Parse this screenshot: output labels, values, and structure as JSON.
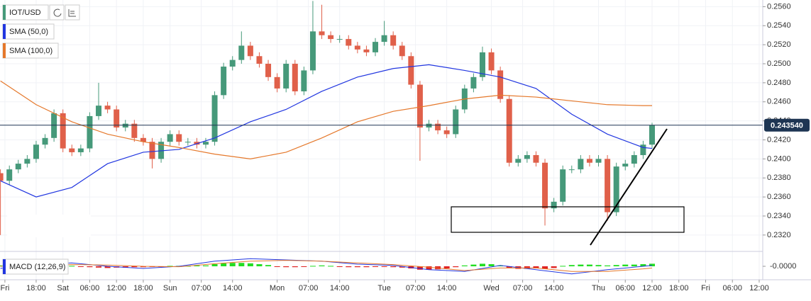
{
  "chart_data": [
    {
      "type": "candlestick",
      "name": "IOT/USD",
      "up_color": "#46997a",
      "down_color": "#e0604a",
      "x": [
        10,
        12,
        14,
        16,
        18,
        20,
        22,
        24,
        26,
        28,
        30,
        32,
        34,
        36,
        38,
        40,
        42,
        44,
        46,
        48,
        50,
        52,
        54,
        56,
        58,
        60,
        62,
        64,
        66,
        68,
        70,
        72,
        74,
        76,
        78,
        80,
        82,
        84,
        86,
        88,
        90,
        92,
        94,
        96,
        98,
        100,
        102,
        104,
        106,
        108,
        110,
        112,
        114,
        116,
        118,
        120,
        122,
        124,
        126,
        128,
        130,
        132,
        134,
        136,
        138,
        140,
        142,
        144,
        146,
        148,
        150,
        152,
        154,
        156
      ],
      "open": [
        0.2385,
        0.2377,
        0.2389,
        0.2395,
        0.24,
        0.2415,
        0.2422,
        0.2448,
        0.2411,
        0.2407,
        0.2411,
        0.2445,
        0.2456,
        0.2452,
        0.2433,
        0.2437,
        0.2422,
        0.2418,
        0.24,
        0.2418,
        0.2426,
        0.2418,
        0.2418,
        0.2415,
        0.2418,
        0.2467,
        0.2497,
        0.2504,
        0.2519,
        0.2508,
        0.25,
        0.2486,
        0.2474,
        0.25,
        0.2471,
        0.2493,
        0.2534,
        0.253,
        0.2526,
        0.2526,
        0.2519,
        0.2515,
        0.2512,
        0.2523,
        0.253,
        0.2519,
        0.2508,
        0.2478,
        0.2433,
        0.2437,
        0.243,
        0.2426,
        0.2452,
        0.2474,
        0.2486,
        0.2512,
        0.2493,
        0.2463,
        0.2396,
        0.24,
        0.2404,
        0.2396,
        0.2348,
        0.2355,
        0.2389,
        0.2389,
        0.24,
        0.2396,
        0.24,
        0.2344,
        0.2392,
        0.2395,
        0.2404,
        0.2415
      ],
      "high": [
        0.2389,
        0.2393,
        0.2399,
        0.2404,
        0.2419,
        0.2426,
        0.2452,
        0.2452,
        0.2415,
        0.2415,
        0.2449,
        0.248,
        0.246,
        0.2456,
        0.2441,
        0.2441,
        0.2426,
        0.2422,
        0.2422,
        0.243,
        0.243,
        0.2422,
        0.2422,
        0.2422,
        0.2471,
        0.2501,
        0.2508,
        0.2534,
        0.2523,
        0.2512,
        0.2504,
        0.249,
        0.2504,
        0.2504,
        0.2497,
        0.2566,
        0.2562,
        0.2534,
        0.253,
        0.253,
        0.2523,
        0.2519,
        0.2527,
        0.2545,
        0.2534,
        0.2523,
        0.2512,
        0.2482,
        0.2441,
        0.2441,
        0.2434,
        0.2456,
        0.2478,
        0.249,
        0.2518,
        0.2516,
        0.2497,
        0.2467,
        0.2404,
        0.2408,
        0.2408,
        0.24,
        0.2359,
        0.2393,
        0.2393,
        0.2404,
        0.2404,
        0.2404,
        0.2404,
        0.2396,
        0.2399,
        0.2408,
        0.2419,
        0.2438
      ],
      "low": [
        0.232,
        0.2373,
        0.2385,
        0.2391,
        0.2396,
        0.2411,
        0.2418,
        0.2407,
        0.2403,
        0.2403,
        0.2407,
        0.2441,
        0.2448,
        0.2429,
        0.2429,
        0.2418,
        0.2414,
        0.239,
        0.2396,
        0.2414,
        0.2414,
        0.2414,
        0.2411,
        0.2411,
        0.2414,
        0.2463,
        0.2493,
        0.25,
        0.2504,
        0.2496,
        0.2482,
        0.247,
        0.247,
        0.2467,
        0.2467,
        0.2489,
        0.2526,
        0.2522,
        0.2522,
        0.2515,
        0.2511,
        0.2508,
        0.2508,
        0.2519,
        0.2515,
        0.2504,
        0.2474,
        0.2398,
        0.2429,
        0.2426,
        0.2422,
        0.2422,
        0.2448,
        0.247,
        0.2482,
        0.2489,
        0.2459,
        0.2392,
        0.2392,
        0.2396,
        0.2392,
        0.233,
        0.2344,
        0.2351,
        0.2385,
        0.2385,
        0.2392,
        0.2392,
        0.2335,
        0.234,
        0.2388,
        0.2391,
        0.24,
        0.2411
      ],
      "close": [
        0.2377,
        0.2389,
        0.2395,
        0.24,
        0.2415,
        0.2422,
        0.2448,
        0.2411,
        0.2407,
        0.2411,
        0.2445,
        0.2456,
        0.2452,
        0.2433,
        0.2437,
        0.2422,
        0.2418,
        0.24,
        0.2418,
        0.2426,
        0.2418,
        0.2418,
        0.2415,
        0.2418,
        0.2467,
        0.2497,
        0.2504,
        0.2519,
        0.2508,
        0.25,
        0.2486,
        0.2474,
        0.25,
        0.2471,
        0.2493,
        0.2534,
        0.253,
        0.2526,
        0.2526,
        0.2519,
        0.2515,
        0.2512,
        0.2523,
        0.253,
        0.2519,
        0.2508,
        0.2478,
        0.2433,
        0.2437,
        0.243,
        0.2426,
        0.2452,
        0.2474,
        0.2486,
        0.2512,
        0.2493,
        0.2463,
        0.2396,
        0.24,
        0.2404,
        0.2396,
        0.2348,
        0.2355,
        0.2389,
        0.2389,
        0.24,
        0.2396,
        0.24,
        0.2344,
        0.2392,
        0.2395,
        0.2404,
        0.2415,
        0.24354
      ],
      "series": [
        {
          "name": "SMA (50,0)",
          "color": "#2136e0",
          "x": [
            10,
            18,
            26,
            34,
            42,
            50,
            58,
            66,
            74,
            82,
            90,
            98,
            106,
            114,
            122,
            130,
            138,
            146,
            154,
            156
          ],
          "values": [
            0.2377,
            0.236,
            0.237,
            0.2395,
            0.2407,
            0.241,
            0.2422,
            0.2439,
            0.2452,
            0.2471,
            0.2486,
            0.2495,
            0.2499,
            0.2493,
            0.2486,
            0.2474,
            0.2447,
            0.2426,
            0.2412,
            0.2411
          ]
        },
        {
          "name": "SMA (100,0)",
          "color": "#e5782b",
          "x": [
            10,
            18,
            26,
            34,
            42,
            50,
            58,
            66,
            74,
            82,
            90,
            98,
            106,
            114,
            122,
            130,
            138,
            146,
            154,
            156
          ],
          "values": [
            0.2482,
            0.2457,
            0.2439,
            0.2426,
            0.2418,
            0.2412,
            0.2405,
            0.24,
            0.2407,
            0.2422,
            0.2439,
            0.245,
            0.2456,
            0.2463,
            0.2467,
            0.2465,
            0.2461,
            0.2457,
            0.2456,
            0.2456
          ]
        }
      ],
      "last_price": {
        "value": 0.24354,
        "label": "0.243540"
      },
      "ylim": [
        0.2305,
        0.2567
      ],
      "yticks": [
        {
          "value": 0.232,
          "label": "0.2320"
        },
        {
          "value": 0.234,
          "label": "0.2340"
        },
        {
          "value": 0.236,
          "label": "0.2360"
        },
        {
          "value": 0.238,
          "label": "0.2380"
        },
        {
          "value": 0.24,
          "label": "0.2400"
        },
        {
          "value": 0.242,
          "label": "0.2420"
        },
        {
          "value": 0.244,
          "label": "0.2440"
        },
        {
          "value": 0.246,
          "label": "0.2460"
        },
        {
          "value": 0.248,
          "label": "0.2480"
        },
        {
          "value": 0.25,
          "label": "0.2500"
        },
        {
          "value": 0.252,
          "label": "0.2520"
        },
        {
          "value": 0.254,
          "label": "0.2540"
        },
        {
          "value": 0.256,
          "label": "0.2560"
        }
      ],
      "xlim": [
        9.9,
        180.8
      ],
      "xticks": [
        {
          "value": 11,
          "label": "Fri"
        },
        {
          "value": 18,
          "label": "18:00"
        },
        {
          "value": 24,
          "label": "Sat"
        },
        {
          "value": 30,
          "label": "06:00"
        },
        {
          "value": 36,
          "label": "12:00"
        },
        {
          "value": 42,
          "label": "18:00"
        },
        {
          "value": 48,
          "label": "Sun"
        },
        {
          "value": 55,
          "label": "07:00"
        },
        {
          "value": 62,
          "label": "14:00"
        },
        {
          "value": 72,
          "label": "Mon"
        },
        {
          "value": 79,
          "label": "07:00"
        },
        {
          "value": 86,
          "label": "14:00"
        },
        {
          "value": 96,
          "label": "Tue"
        },
        {
          "value": 103,
          "label": "07:00"
        },
        {
          "value": 110,
          "label": "14:00"
        },
        {
          "value": 120,
          "label": "Wed"
        },
        {
          "value": 127,
          "label": "07:00"
        },
        {
          "value": 134,
          "label": "14:00"
        },
        {
          "value": 144,
          "label": "Thu"
        },
        {
          "value": 150,
          "label": "06:00"
        },
        {
          "value": 156,
          "label": "12:00"
        },
        {
          "value": 162,
          "label": "18:00"
        },
        {
          "value": 168,
          "label": "Fri"
        },
        {
          "value": 174,
          "label": "06:00"
        },
        {
          "value": 180,
          "label": "12:00"
        }
      ],
      "grid": true
    },
    {
      "type": "macd",
      "name": "MACD (12,26,9)",
      "up_color": "#22dd22",
      "down_color": "#e02222",
      "x": [
        10,
        12,
        14,
        16,
        18,
        20,
        22,
        24,
        26,
        28,
        30,
        32,
        34,
        36,
        38,
        40,
        42,
        44,
        46,
        48,
        50,
        52,
        54,
        56,
        58,
        60,
        62,
        64,
        66,
        68,
        70,
        72,
        74,
        76,
        78,
        80,
        82,
        84,
        86,
        88,
        90,
        92,
        94,
        96,
        98,
        100,
        102,
        104,
        106,
        108,
        110,
        112,
        114,
        116,
        118,
        120,
        122,
        124,
        126,
        128,
        130,
        132,
        134,
        136,
        138,
        140,
        142,
        144,
        146,
        148,
        150,
        152,
        154,
        156
      ],
      "histogram": [
        2e-05,
        3e-05,
        2e-05,
        1e-05,
        2e-05,
        3e-05,
        4e-05,
        2e-05,
        1e-05,
        -1e-05,
        -2e-05,
        -3e-05,
        -4e-05,
        -3e-05,
        -3e-05,
        -2e-05,
        -2e-05,
        -1e-05,
        -1e-05,
        1e-05,
        1e-05,
        1e-05,
        2e-05,
        2e-05,
        5e-05,
        7e-05,
        8e-05,
        8e-05,
        7e-05,
        5e-05,
        3e-05,
        -1e-05,
        -2e-05,
        -2e-05,
        -1e-05,
        1e-05,
        2e-05,
        1e-05,
        -1e-05,
        -2e-05,
        -2e-05,
        -2e-05,
        -1e-05,
        -1e-05,
        -2e-05,
        -3e-05,
        -5e-05,
        -8e-05,
        -8e-05,
        -7e-05,
        -5e-05,
        -2e-05,
        2e-05,
        4e-05,
        6e-05,
        5e-05,
        2e-05,
        -4e-05,
        -6e-05,
        -6e-05,
        -5e-05,
        -6e-05,
        -4e-05,
        1e-05,
        3e-05,
        4e-05,
        4e-05,
        3e-05,
        2e-05,
        3e-05,
        4e-05,
        4e-05,
        5e-05,
        6e-05
      ],
      "series": [
        {
          "color": "#2136e0",
          "x": [
            10,
            18,
            26,
            34,
            42,
            50,
            58,
            66,
            74,
            82,
            90,
            98,
            106,
            114,
            122,
            130,
            138,
            146,
            154,
            156
          ],
          "values": [
            -5e-05,
            5e-05,
            8e-05,
            0.0,
            -5e-05,
            0.0,
            0.00012,
            0.00018,
            0.00015,
            0.00012,
            5e-05,
            2e-05,
            -8e-05,
            -0.00012,
            2e-05,
            -8e-05,
            -0.00018,
            -8e-05,
            0.0,
            2e-05
          ]
        },
        {
          "color": "#e5782b",
          "x": [
            10,
            18,
            26,
            34,
            42,
            50,
            58,
            66,
            74,
            82,
            90,
            98,
            106,
            114,
            122,
            130,
            138,
            146,
            154,
            156
          ],
          "values": [
            0.0,
            2e-05,
            4e-05,
            3e-05,
            0.0,
            -1e-05,
            6e-05,
            0.00012,
            0.00014,
            0.00012,
            8e-05,
            4e-05,
            -2e-05,
            -0.0001,
            -4e-05,
            -4e-05,
            -0.00012,
            -0.00012,
            -6e-05,
            -4e-05
          ]
        }
      ],
      "ylim": [
        -0.00025,
        0.00025
      ],
      "yticks": [
        {
          "value": 0,
          "label": "-0.0000"
        }
      ]
    }
  ]
}
